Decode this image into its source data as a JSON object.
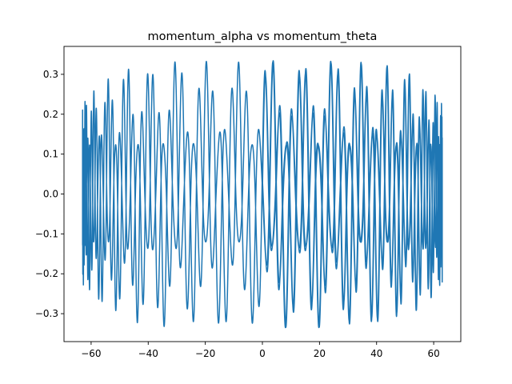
{
  "chart_data": {
    "type": "line",
    "title": "momentum_alpha vs momentum_theta",
    "xlabel": "",
    "ylabel": "",
    "xlim": [
      -69.5,
      69.5
    ],
    "ylim": [
      -0.37,
      0.37
    ],
    "xticks": [
      -60,
      -40,
      -20,
      0,
      20,
      40,
      60
    ],
    "xtick_labels": [
      "−60",
      "−40",
      "−20",
      "0",
      "20",
      "40",
      "60"
    ],
    "yticks": [
      -0.3,
      -0.2,
      -0.1,
      0.0,
      0.1,
      0.2,
      0.3
    ],
    "ytick_labels": [
      "−0.3",
      "−0.2",
      "−0.1",
      "0.0",
      "0.1",
      "0.2",
      "0.3"
    ],
    "grid": false,
    "legend": "none",
    "line_color": "#1f77b4",
    "series": [
      {
        "x_range": [
          -63,
          63
        ],
        "y_range": [
          -0.335,
          0.335
        ],
        "inner_band_y": [
          -0.12,
          0.12
        ],
        "x_turning_points": [
          -63,
          63
        ]
      }
    ]
  }
}
